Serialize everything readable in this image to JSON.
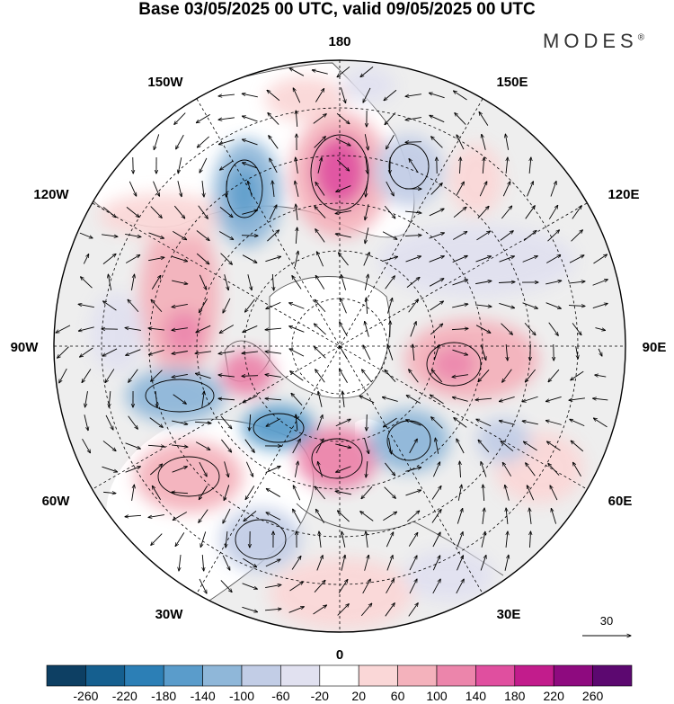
{
  "title": "Base 03/05/2025 00 UTC, valid 09/05/2025 00 UTC",
  "brand": "MODES",
  "brand_mark": "®",
  "longitude_labels": {
    "top": "180",
    "bottom": "0",
    "left": "90W",
    "right": "90E",
    "upper_left_1": "150W",
    "upper_left_2": "120W",
    "lower_left_1": "60W",
    "lower_left_2": "30W",
    "upper_right_1": "150E",
    "upper_right_2": "120E",
    "lower_right_1": "60E",
    "lower_right_2": "30E"
  },
  "vector_reference": "30",
  "colorbar": {
    "labels": [
      "-260",
      "-220",
      "-180",
      "-140",
      "-100",
      "-60",
      "-20",
      "20",
      "60",
      "100",
      "140",
      "180",
      "220",
      "260"
    ],
    "colors": [
      "#0d3f63",
      "#155f8f",
      "#2c7fb6",
      "#5a9ccb",
      "#8fb7d9",
      "#c2cde6",
      "#e1e1f0",
      "#ffffff",
      "#fad7d7",
      "#f4b2bc",
      "#ec85ab",
      "#e04f9f",
      "#c21c8c",
      "#8e0a7f",
      "#5c0870"
    ]
  },
  "colors": {
    "land_fill": "#eeeeee",
    "ocean_fill": "#ffffff",
    "coast": "#555555",
    "grid": "#000000"
  }
}
